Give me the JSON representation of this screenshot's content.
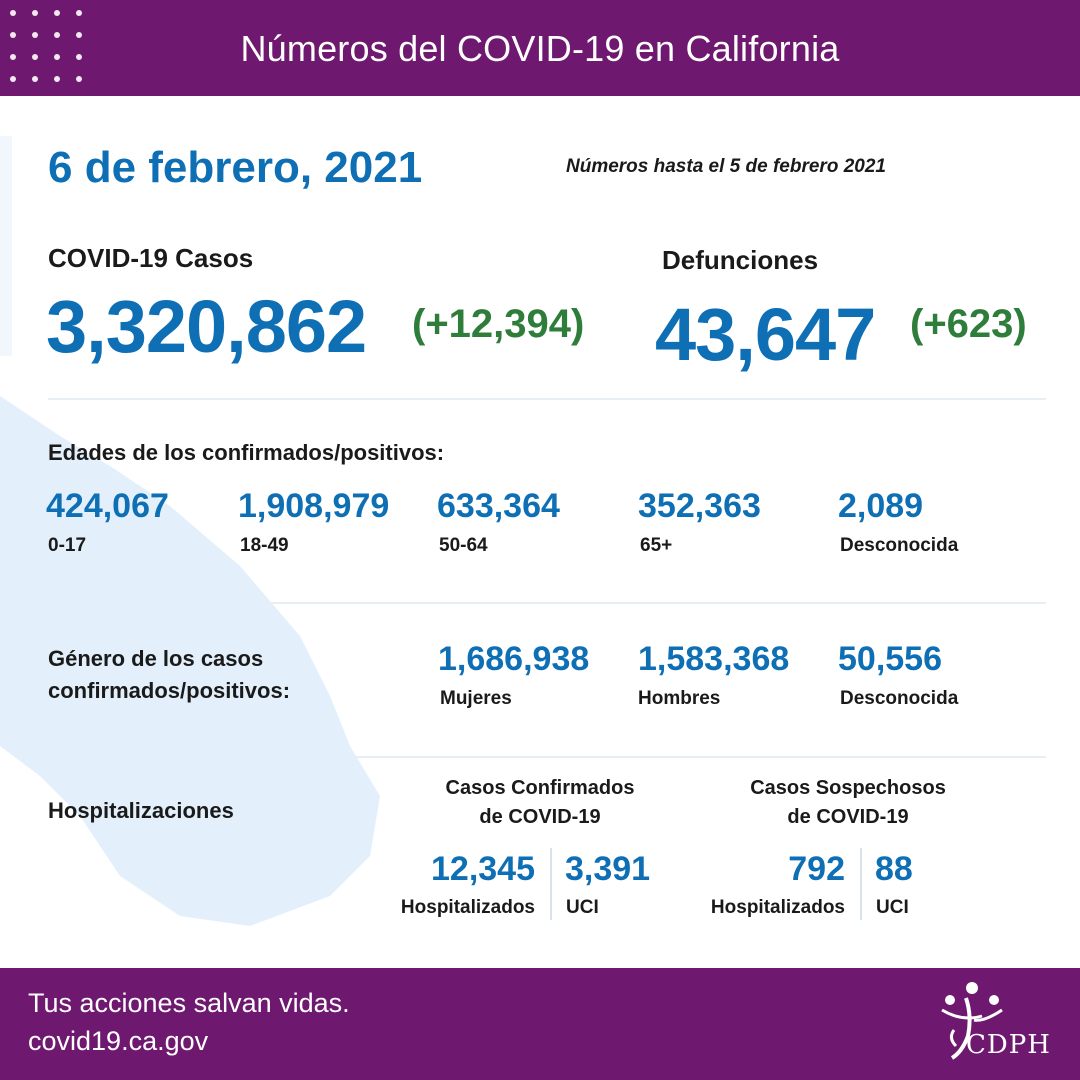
{
  "header": {
    "title": "Números del COVID-19 en California"
  },
  "date": "6 de febrero, 2021",
  "as_of": "Números hasta el 5 de febrero 2021",
  "cases": {
    "label": "COVID-19 Casos",
    "total": "3,320,862",
    "delta": "(+12,394)"
  },
  "deaths": {
    "label": "Defunciones",
    "total": "43,647",
    "delta": "(+623)"
  },
  "ages": {
    "label": "Edades de los confirmados/positivos:",
    "items": [
      {
        "value": "424,067",
        "label": "0-17"
      },
      {
        "value": "1,908,979",
        "label": "18-49"
      },
      {
        "value": "633,364",
        "label": "50-64"
      },
      {
        "value": "352,363",
        "label": "65+"
      },
      {
        "value": "2,089",
        "label": "Desconocida"
      }
    ]
  },
  "gender": {
    "label_line1": "Género de los casos",
    "label_line2": "confirmados/positivos:",
    "items": [
      {
        "value": "1,686,938",
        "label": "Mujeres"
      },
      {
        "value": "1,583,368",
        "label": "Hombres"
      },
      {
        "value": "50,556",
        "label": "Desconocida"
      }
    ]
  },
  "hospital": {
    "label": "Hospitalizaciones",
    "confirmed": {
      "title_line1": "Casos Confirmados",
      "title_line2": "de COVID-19",
      "hospitalized": {
        "value": "12,345",
        "label": "Hospitalizados"
      },
      "icu": {
        "value": "3,391",
        "label": "UCI"
      }
    },
    "suspected": {
      "title_line1": "Casos Sospechosos",
      "title_line2": "de COVID-19",
      "hospitalized": {
        "value": "792",
        "label": "Hospitalizados"
      },
      "icu": {
        "value": "88",
        "label": "UCI"
      }
    }
  },
  "footer": {
    "tagline": "Tus acciones salvan vidas.",
    "url": "covid19.ca.gov",
    "logo_text": "CDPH"
  },
  "colors": {
    "brand_purple": "#6e1870",
    "number_blue": "#0e6fb5",
    "delta_green": "#2e7d3a",
    "state_shape": "#e3f0fb"
  }
}
